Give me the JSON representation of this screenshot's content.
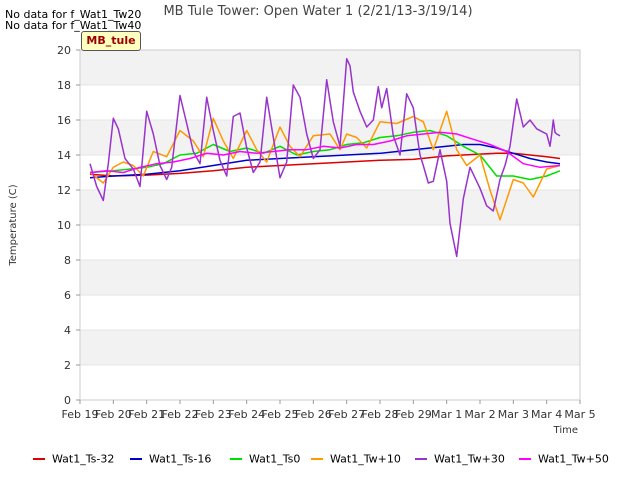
{
  "notes": [
    "No data for f_Wat1_Tw20",
    "No data for f_Wat1_Tw40"
  ],
  "badge": "MB_tule",
  "chart_data": {
    "type": "line",
    "title": "MB Tule Tower: Open Water 1 (2/21/13-3/19/14)",
    "xlabel": "Time",
    "ylabel": "Temperature (C)",
    "ylim": [
      0,
      20
    ],
    "yticks": [
      0,
      2,
      4,
      6,
      8,
      10,
      12,
      14,
      16,
      18,
      20
    ],
    "xlim": [
      0,
      15
    ],
    "xticks": [
      0,
      1,
      2,
      3,
      4,
      5,
      6,
      7,
      8,
      9,
      10,
      11,
      12,
      13,
      14,
      15
    ],
    "xticklabels": [
      "Feb 19",
      "Feb 20",
      "Feb 21",
      "Feb 22",
      "Feb 23",
      "Feb 24",
      "Feb 25",
      "Feb 26",
      "Feb 27",
      "Feb 28",
      "Feb 29",
      "Mar 1",
      "Mar 2",
      "Mar 3",
      "Mar 4",
      "Mar 5"
    ],
    "grid": true,
    "legend_position": "bottom",
    "series": [
      {
        "name": "Wat1_Ts-32",
        "color": "#dd0000",
        "x": [
          0.3,
          1,
          2,
          3,
          4,
          5,
          6,
          7,
          8,
          9,
          10,
          11,
          12,
          12.5,
          13,
          13.5,
          14,
          14.4
        ],
        "y": [
          12.9,
          12.8,
          12.85,
          12.95,
          13.1,
          13.3,
          13.4,
          13.5,
          13.6,
          13.7,
          13.75,
          13.95,
          14.05,
          14.1,
          14.1,
          14.0,
          13.9,
          13.8
        ]
      },
      {
        "name": "Wat1_Ts-16",
        "color": "#0000cc",
        "x": [
          0.3,
          1,
          2,
          3,
          4,
          5,
          6,
          7,
          8,
          9,
          10,
          11,
          11.5,
          12,
          12.5,
          13,
          13.5,
          14,
          14.4
        ],
        "y": [
          12.7,
          12.8,
          12.9,
          13.1,
          13.4,
          13.7,
          13.8,
          13.9,
          14.0,
          14.1,
          14.3,
          14.5,
          14.6,
          14.6,
          14.4,
          14.1,
          13.8,
          13.6,
          13.5
        ]
      },
      {
        "name": "Wat1_Ts0",
        "color": "#00dd00",
        "x": [
          0.3,
          1,
          1.5,
          2,
          2.5,
          3,
          3.5,
          4,
          4.5,
          5,
          5.5,
          6,
          6.5,
          7,
          7.5,
          8,
          8.5,
          9,
          9.5,
          10,
          10.5,
          11,
          11.5,
          12,
          12.5,
          13,
          13.5,
          14,
          14.4
        ],
        "y": [
          13.0,
          13.1,
          13.2,
          13.3,
          13.5,
          14.0,
          14.1,
          14.6,
          14.2,
          14.4,
          14.1,
          14.5,
          14.0,
          14.2,
          14.3,
          14.6,
          14.7,
          15.0,
          15.1,
          15.3,
          15.4,
          15.1,
          14.5,
          14.0,
          12.8,
          12.8,
          12.6,
          12.8,
          13.1
        ]
      },
      {
        "name": "Wat1_Tw+10",
        "color": "#ff9900",
        "x": [
          0.3,
          0.7,
          1,
          1.3,
          1.6,
          1.9,
          2.2,
          2.6,
          3.0,
          3.4,
          3.7,
          4.0,
          4.3,
          4.6,
          5.0,
          5.3,
          5.6,
          6.0,
          6.3,
          6.6,
          7.0,
          7.5,
          7.8,
          8.0,
          8.3,
          8.6,
          9.0,
          9.5,
          10.0,
          10.3,
          10.6,
          11.0,
          11.3,
          11.6,
          12.0,
          12.3,
          12.6,
          13.0,
          13.3,
          13.6,
          14.0,
          14.4
        ],
        "y": [
          13.0,
          12.4,
          13.3,
          13.6,
          13.4,
          12.8,
          14.2,
          13.9,
          15.4,
          14.8,
          13.9,
          16.1,
          14.8,
          13.8,
          15.4,
          14.3,
          13.6,
          15.6,
          14.5,
          13.9,
          15.1,
          15.2,
          14.3,
          15.2,
          15.0,
          14.4,
          15.9,
          15.8,
          16.2,
          15.9,
          14.3,
          16.5,
          14.3,
          13.4,
          14.0,
          12.0,
          10.3,
          12.6,
          12.4,
          11.6,
          13.2,
          13.4
        ]
      },
      {
        "name": "Wat1_Tw+30",
        "color": "#9933cc",
        "x": [
          0.3,
          0.5,
          0.7,
          0.85,
          1.0,
          1.15,
          1.35,
          1.6,
          1.8,
          2.0,
          2.2,
          2.4,
          2.6,
          2.75,
          3.0,
          3.2,
          3.4,
          3.6,
          3.8,
          4.0,
          4.2,
          4.4,
          4.6,
          4.8,
          5.0,
          5.2,
          5.4,
          5.6,
          5.8,
          6.0,
          6.2,
          6.4,
          6.6,
          6.8,
          7.0,
          7.2,
          7.4,
          7.6,
          7.8,
          8.0,
          8.1,
          8.2,
          8.4,
          8.6,
          8.8,
          8.95,
          9.05,
          9.2,
          9.4,
          9.6,
          9.8,
          10.0,
          10.1,
          10.2,
          10.3,
          10.45,
          10.6,
          10.8,
          11.0,
          11.1,
          11.3,
          11.5,
          11.7,
          12.0,
          12.2,
          12.4,
          12.6,
          12.75,
          12.9,
          13.1,
          13.3,
          13.5,
          13.7,
          13.9,
          14.0,
          14.1,
          14.15,
          14.2,
          14.25,
          14.3,
          14.4
        ],
        "y": [
          13.5,
          12.2,
          11.4,
          13.5,
          16.1,
          15.5,
          13.8,
          13.2,
          12.2,
          16.5,
          15.2,
          13.4,
          12.6,
          13.3,
          17.4,
          15.8,
          14.2,
          13.5,
          17.3,
          15.4,
          13.7,
          12.8,
          16.2,
          16.4,
          14.4,
          13.0,
          13.6,
          17.3,
          15.0,
          12.7,
          13.6,
          18.0,
          17.3,
          15.2,
          13.8,
          14.3,
          18.3,
          15.9,
          14.5,
          19.5,
          19.1,
          17.6,
          16.5,
          15.6,
          16.0,
          17.9,
          16.7,
          17.8,
          15.1,
          14.0,
          17.5,
          16.7,
          15.3,
          14.0,
          13.4,
          12.4,
          12.5,
          14.3,
          12.5,
          10.1,
          8.2,
          11.5,
          13.3,
          12.1,
          11.1,
          10.8,
          12.6,
          13.4,
          14.5,
          17.2,
          15.6,
          16.0,
          15.5,
          15.3,
          15.2,
          14.5,
          15.2,
          16.0,
          15.3,
          15.2,
          15.1
        ]
      },
      {
        "name": "Wat1_Tw+50",
        "color": "#ff00ff",
        "x": [
          0.3,
          0.8,
          1.3,
          1.8,
          2.3,
          2.8,
          3.3,
          3.8,
          4.3,
          4.8,
          5.3,
          5.8,
          6.3,
          6.8,
          7.3,
          7.8,
          8.3,
          8.8,
          9.3,
          9.8,
          10.3,
          10.8,
          11.3,
          11.8,
          12.3,
          12.8,
          13.3,
          13.8,
          14.4
        ],
        "y": [
          13.0,
          13.1,
          13.0,
          13.3,
          13.5,
          13.6,
          13.8,
          14.1,
          14.0,
          14.2,
          14.1,
          14.2,
          14.3,
          14.3,
          14.5,
          14.4,
          14.6,
          14.6,
          14.8,
          15.1,
          15.2,
          15.3,
          15.2,
          14.9,
          14.6,
          14.2,
          13.5,
          13.3,
          13.4
        ]
      }
    ]
  }
}
